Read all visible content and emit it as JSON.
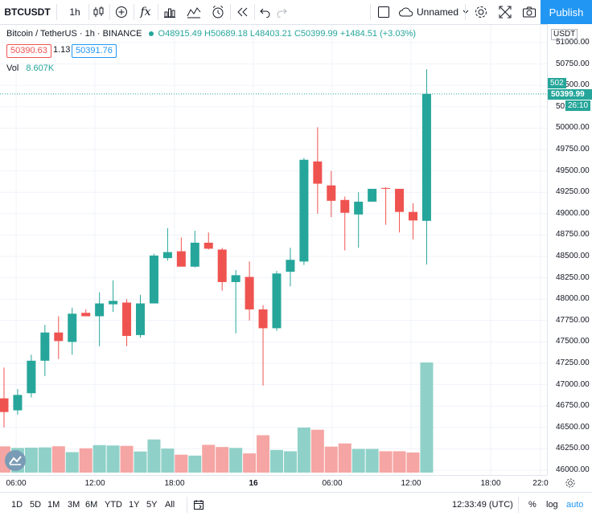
{
  "toolbar": {
    "symbol": "BTCUSDT",
    "interval": "1h",
    "layout_name": "Unnamed",
    "publish_label": "Publish",
    "fx_label": "fx"
  },
  "legend": {
    "title": "Bitcoin / TetherUS · 1h · BINANCE",
    "ohlc": "O48915.49 H50689.18 L48403.21 C50399.99 +1484.51 (+3.03%)",
    "sell_price": "50390.63",
    "spread": "1.13",
    "buy_price": "50391.76",
    "vol_label": "Vol",
    "vol_value": "8.607K"
  },
  "price_axis": {
    "currency": "USDT",
    "last_price": "50399.99",
    "countdown": "26:10",
    "partial_label": "502",
    "ticks": [
      "51000.00",
      "50750.00",
      "50500.00",
      "50250.00",
      "50000.00",
      "49750.00",
      "49500.00",
      "49250.00",
      "49000.00",
      "48750.00",
      "48500.00",
      "48250.00",
      "48000.00",
      "47750.00",
      "47500.00",
      "47250.00",
      "47000.00",
      "46750.00",
      "46500.00",
      "46250.00",
      "46000.00"
    ]
  },
  "time_axis": {
    "labels": [
      "06:00",
      "12:00",
      "18:00",
      "16",
      "06:00",
      "12:00",
      "18:00",
      "22:0"
    ]
  },
  "bottom_bar": {
    "ranges": [
      "1D",
      "5D",
      "1M",
      "3M",
      "6M",
      "YTD",
      "1Y",
      "5Y",
      "All"
    ],
    "clock": "12:33:49 (UTC)",
    "percent_label": "%",
    "log_label": "log",
    "auto_label": "auto"
  },
  "colors": {
    "up": "#26a69a",
    "down": "#ef5350",
    "up_volume": "#8fd1c8",
    "down_volume": "#f5a5a3",
    "accent": "#2196f3"
  },
  "icons": [
    "candle-type-icon",
    "add-indicator-icon",
    "fx-icon",
    "bar-chart-icon",
    "compare-icon",
    "alert-icon",
    "replay-icon",
    "undo-icon",
    "redo-icon",
    "fullscreen-checkbox-icon",
    "cloud-icon",
    "settings-icon",
    "fullscreen-icon",
    "camera-icon",
    "goto-date-icon"
  ],
  "chart_data": {
    "type": "candlestick",
    "title": "Bitcoin / TetherUS · 1h · BINANCE",
    "ylim": [
      46000,
      51000
    ],
    "candles": [
      {
        "o": 46840,
        "h": 47200,
        "l": 46500,
        "c": 46680
      },
      {
        "o": 46700,
        "h": 46950,
        "l": 46650,
        "c": 46880
      },
      {
        "o": 46900,
        "h": 47350,
        "l": 46850,
        "c": 47280
      },
      {
        "o": 47280,
        "h": 47700,
        "l": 47100,
        "c": 47610
      },
      {
        "o": 47610,
        "h": 47800,
        "l": 47300,
        "c": 47510
      },
      {
        "o": 47500,
        "h": 47900,
        "l": 47350,
        "c": 47830
      },
      {
        "o": 47840,
        "h": 47880,
        "l": 47800,
        "c": 47800
      },
      {
        "o": 47800,
        "h": 48080,
        "l": 47450,
        "c": 47950
      },
      {
        "o": 47940,
        "h": 48220,
        "l": 47850,
        "c": 47980
      },
      {
        "o": 47960,
        "h": 48000,
        "l": 47450,
        "c": 47570
      },
      {
        "o": 47580,
        "h": 48050,
        "l": 47550,
        "c": 47950
      },
      {
        "o": 47950,
        "h": 48530,
        "l": 47950,
        "c": 48510
      },
      {
        "o": 48480,
        "h": 48830,
        "l": 48450,
        "c": 48550
      },
      {
        "o": 48560,
        "h": 48720,
        "l": 48420,
        "c": 48380
      },
      {
        "o": 48380,
        "h": 48800,
        "l": 48370,
        "c": 48660
      },
      {
        "o": 48660,
        "h": 48780,
        "l": 48580,
        "c": 48590
      },
      {
        "o": 48580,
        "h": 48600,
        "l": 48100,
        "c": 48200
      },
      {
        "o": 48200,
        "h": 48340,
        "l": 47600,
        "c": 48280
      },
      {
        "o": 48260,
        "h": 48440,
        "l": 47750,
        "c": 47880
      },
      {
        "o": 47880,
        "h": 47930,
        "l": 46990,
        "c": 47660
      },
      {
        "o": 47660,
        "h": 48330,
        "l": 47630,
        "c": 48300
      },
      {
        "o": 48320,
        "h": 48600,
        "l": 48150,
        "c": 48460
      },
      {
        "o": 48440,
        "h": 49650,
        "l": 48400,
        "c": 49630
      },
      {
        "o": 49610,
        "h": 50010,
        "l": 49000,
        "c": 49350
      },
      {
        "o": 49330,
        "h": 49500,
        "l": 48960,
        "c": 49150
      },
      {
        "o": 49160,
        "h": 49200,
        "l": 48570,
        "c": 49010
      },
      {
        "o": 48990,
        "h": 49250,
        "l": 48600,
        "c": 49140
      },
      {
        "o": 49140,
        "h": 49290,
        "l": 49140,
        "c": 49290
      },
      {
        "o": 49300,
        "h": 49310,
        "l": 48870,
        "c": 49290
      },
      {
        "o": 49290,
        "h": 49290,
        "l": 48780,
        "c": 49020
      },
      {
        "o": 49020,
        "h": 49120,
        "l": 48700,
        "c": 48920
      },
      {
        "o": 48915.49,
        "h": 50689.18,
        "l": 48403.21,
        "c": 50399.99
      }
    ],
    "volume": [
      2.05,
      1.93,
      1.95,
      1.97,
      2.06,
      1.6,
      1.9,
      2.15,
      2.12,
      2.09,
      1.65,
      2.59,
      1.88,
      1.4,
      1.33,
      2.17,
      2.0,
      1.93,
      1.5,
      2.92,
      1.77,
      1.67,
      3.52,
      3.35,
      2.03,
      2.28,
      1.85,
      1.85,
      1.67,
      1.67,
      1.57,
      8.61
    ]
  }
}
